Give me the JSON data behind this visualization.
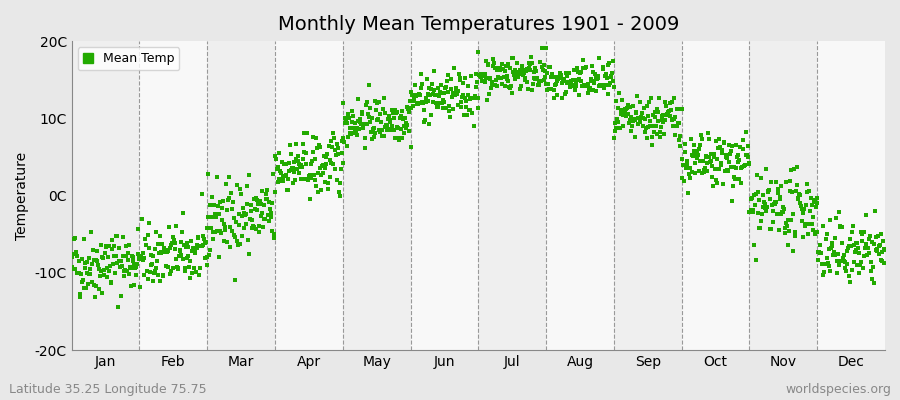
{
  "title": "Monthly Mean Temperatures 1901 - 2009",
  "ylabel": "Temperature",
  "ylim": [
    -20,
    20
  ],
  "yticks": [
    -20,
    -10,
    0,
    10,
    20
  ],
  "ytick_labels": [
    "-20C",
    "-10C",
    "0C",
    "10C",
    "20C"
  ],
  "months": [
    "Jan",
    "Feb",
    "Mar",
    "Apr",
    "May",
    "Jun",
    "Jul",
    "Aug",
    "Sep",
    "Oct",
    "Nov",
    "Dec"
  ],
  "monthly_means": [
    -9.0,
    -8.0,
    -3.0,
    3.5,
    9.5,
    12.5,
    15.5,
    14.5,
    9.5,
    4.0,
    -2.0,
    -7.5
  ],
  "monthly_stds": [
    2.2,
    2.0,
    2.5,
    2.0,
    1.5,
    1.5,
    1.2,
    1.2,
    1.5,
    1.8,
    2.2,
    2.0
  ],
  "n_years": 109,
  "dot_color": "#22aa00",
  "dot_size": 6,
  "background_color": "#e8e8e8",
  "plot_bg_light": "#efefef",
  "plot_bg_white": "#f8f8f8",
  "legend_label": "Mean Temp",
  "bottom_left_text": "Latitude 35.25 Longitude 75.75",
  "bottom_right_text": "worldspecies.org",
  "title_fontsize": 14,
  "axis_label_fontsize": 10,
  "tick_fontsize": 10,
  "annotation_fontsize": 9,
  "dashed_line_color": "#999999",
  "seed": 42
}
